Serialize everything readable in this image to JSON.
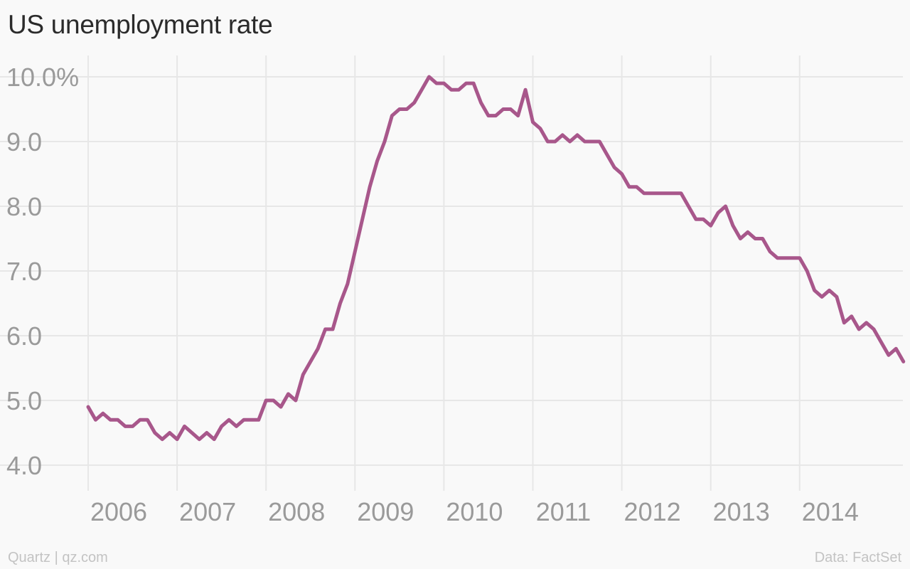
{
  "colors": {
    "background": "#f9f9f9",
    "series": "#a8578b",
    "grid": "#e7e7e7",
    "tick_label": "#9a9a9a"
  },
  "footer": {
    "credit": "Quartz | qz.com",
    "source": "Data: FactSet"
  },
  "chart_data": {
    "type": "line",
    "title": "US unemployment rate",
    "xlabel": "",
    "ylabel": "",
    "ylim": [
      4.0,
      10.0
    ],
    "y_ticks": [
      {
        "value": 10.0,
        "label": "10.0%"
      },
      {
        "value": 9.0,
        "label": "9.0"
      },
      {
        "value": 8.0,
        "label": "8.0"
      },
      {
        "value": 7.0,
        "label": "7.0"
      },
      {
        "value": 6.0,
        "label": "6.0"
      },
      {
        "value": 5.0,
        "label": "5.0"
      },
      {
        "value": 4.0,
        "label": "4.0"
      }
    ],
    "x_ticks": [
      "2006",
      "2007",
      "2008",
      "2009",
      "2010",
      "2011",
      "2012",
      "2013",
      "2014"
    ],
    "x_start": "2006-01",
    "x_frequency": "monthly",
    "grid": true,
    "legend": "none",
    "series": [
      {
        "values": [
          4.9,
          4.7,
          4.8,
          4.7,
          4.7,
          4.6,
          4.6,
          4.7,
          4.7,
          4.5,
          4.4,
          4.5,
          4.4,
          4.6,
          4.5,
          4.4,
          4.5,
          4.4,
          4.6,
          4.7,
          4.6,
          4.7,
          4.7,
          4.7,
          5.0,
          5.0,
          4.9,
          5.1,
          5.0,
          5.4,
          5.6,
          5.8,
          6.1,
          6.1,
          6.5,
          6.8,
          7.3,
          7.8,
          8.3,
          8.7,
          9.0,
          9.4,
          9.5,
          9.5,
          9.6,
          9.8,
          10.0,
          9.9,
          9.9,
          9.8,
          9.8,
          9.9,
          9.9,
          9.6,
          9.4,
          9.4,
          9.5,
          9.5,
          9.4,
          9.8,
          9.3,
          9.2,
          9.0,
          9.0,
          9.1,
          9.0,
          9.1,
          9.0,
          9.0,
          9.0,
          8.8,
          8.6,
          8.5,
          8.3,
          8.3,
          8.2,
          8.2,
          8.2,
          8.2,
          8.2,
          8.2,
          8.0,
          7.8,
          7.8,
          7.7,
          7.9,
          8.0,
          7.7,
          7.5,
          7.6,
          7.5,
          7.5,
          7.3,
          7.2,
          7.2,
          7.2,
          7.2,
          7.0,
          6.7,
          6.6,
          6.7,
          6.6,
          6.2,
          6.3,
          6.1,
          6.2,
          6.1,
          5.9,
          5.7,
          5.8,
          5.6
        ]
      }
    ]
  }
}
